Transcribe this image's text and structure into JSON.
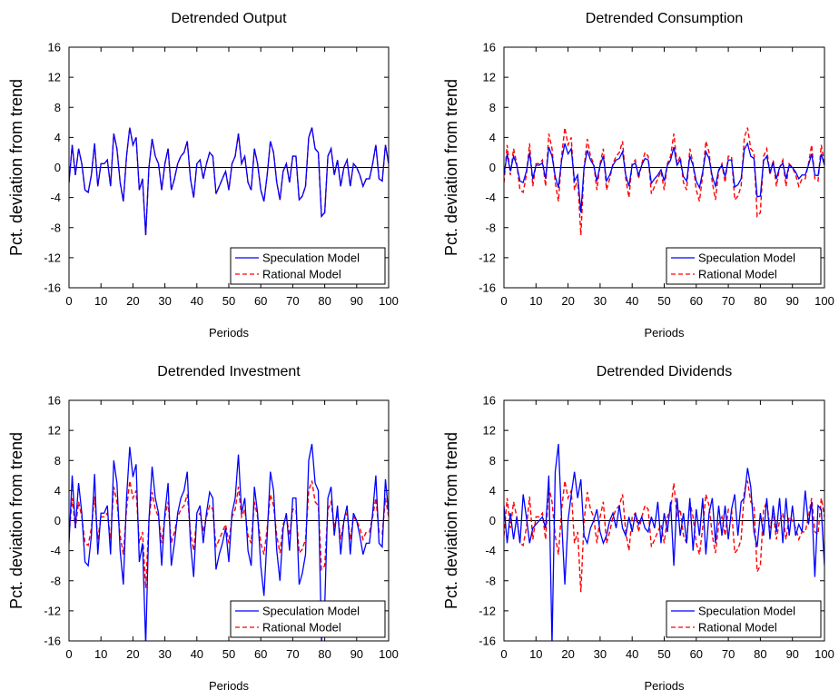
{
  "colors": {
    "speculation": "#0000ff",
    "rational": "#ff0000",
    "axis": "#000000",
    "background": "#ffffff"
  },
  "chart_data": [
    {
      "type": "line",
      "title": "Detrended Output",
      "xlabel": "Periods",
      "ylabel": "Pct. deviation from trend",
      "xlim": [
        0,
        100
      ],
      "ylim": [
        -16,
        16
      ],
      "xticks": [
        0,
        10,
        20,
        30,
        40,
        50,
        60,
        70,
        80,
        90,
        100
      ],
      "yticks": [
        16,
        12,
        8,
        4,
        0,
        -4,
        -8,
        -12,
        -16
      ],
      "grid": false,
      "legend_position": "bottom-right",
      "series": [
        {
          "name": "Speculation Model",
          "style": "solid",
          "values": [
            -2,
            3,
            -1,
            2.5,
            0.5,
            -3,
            -3.3,
            -1,
            3.2,
            -2.5,
            0.5,
            0.5,
            1,
            -2.5,
            4.5,
            2.5,
            -2,
            -4.5,
            1.5,
            5.3,
            3,
            4,
            -3,
            -1.5,
            -9,
            0,
            3.8,
            1.5,
            0.5,
            -3,
            0.5,
            2.5,
            -3,
            -1.5,
            0.5,
            1.5,
            2,
            3.5,
            -1.5,
            -4,
            0.5,
            1,
            -1.5,
            0.5,
            2,
            1.5,
            -3.5,
            -2.5,
            -1.5,
            -0.5,
            -3,
            0.5,
            1.5,
            4.5,
            0.5,
            1.5,
            -2,
            -3,
            2.5,
            0.5,
            -3,
            -4.5,
            -1,
            3.5,
            2,
            -2,
            -4.3,
            -0.5,
            0.5,
            -2,
            1.5,
            1.5,
            -4.3,
            -3.8,
            -2.5,
            4,
            5.3,
            2.5,
            2,
            -6.5,
            -6,
            1.5,
            2.5,
            -1,
            1,
            -2.5,
            0,
            1,
            -2.5,
            0.5,
            0,
            -1,
            -2.5,
            -1.5,
            -1.5,
            0.5,
            3,
            -1.5,
            -1.8,
            3,
            0.5
          ]
        },
        {
          "name": "Rational Model",
          "style": "dashed",
          "values": [
            -2,
            3,
            -1,
            2.5,
            0.5,
            -3,
            -3.3,
            -1,
            3.2,
            -2.5,
            0.5,
            0.5,
            1,
            -2.5,
            4.5,
            2.5,
            -2,
            -4.5,
            1.5,
            5.3,
            3,
            4,
            -3,
            -1.5,
            -9,
            0,
            3.8,
            1.5,
            0.5,
            -3,
            0.5,
            2.5,
            -3,
            -1.5,
            0.5,
            1.5,
            2,
            3.5,
            -1.5,
            -4,
            0.5,
            1,
            -1.5,
            0.5,
            2,
            1.5,
            -3.5,
            -2.5,
            -1.5,
            -0.5,
            -3,
            0.5,
            1.5,
            4.5,
            0.5,
            1.5,
            -2,
            -3,
            2.5,
            0.5,
            -3,
            -4.5,
            -1,
            3.5,
            2,
            -2,
            -4.3,
            -0.5,
            0.5,
            -2,
            1.5,
            1.5,
            -4.3,
            -3.8,
            -2.5,
            4,
            5.3,
            2.5,
            2,
            -6.5,
            -6,
            1.5,
            2.5,
            -1,
            1,
            -2.5,
            0,
            1,
            -2.5,
            0.5,
            0,
            -1,
            -2.5,
            -1.5,
            -1.5,
            0.5,
            3,
            -1.5,
            -1.8,
            3,
            0.5
          ]
        }
      ]
    },
    {
      "type": "line",
      "title": "Detrended Consumption",
      "xlabel": "Periods",
      "ylabel": "Pct. deviation from trend",
      "xlim": [
        0,
        100
      ],
      "ylim": [
        -16,
        16
      ],
      "xticks": [
        0,
        10,
        20,
        30,
        40,
        50,
        60,
        70,
        80,
        90,
        100
      ],
      "yticks": [
        16,
        12,
        8,
        4,
        0,
        -4,
        -8,
        -12,
        -16
      ],
      "grid": false,
      "legend_position": "bottom-right",
      "series": [
        {
          "name": "Speculation Model",
          "style": "solid",
          "values": [
            -1,
            1.8,
            -0.5,
            1.5,
            0.3,
            -1.8,
            -2,
            -0.5,
            2,
            -1.5,
            0.3,
            0.3,
            0.6,
            -1.5,
            2.7,
            1.5,
            -1.2,
            -2.7,
            1,
            3.2,
            1.8,
            2.5,
            -1.8,
            -1,
            -6,
            0,
            2.3,
            1,
            0.3,
            -1.8,
            0.3,
            1.5,
            -1.8,
            -1,
            0.3,
            1,
            1.2,
            2.1,
            -1,
            -2.5,
            0.3,
            0.6,
            -1,
            0.3,
            1.2,
            1,
            -2.1,
            -1.5,
            -1,
            -0.3,
            -1.8,
            0.3,
            1,
            2.7,
            0.3,
            1,
            -1.2,
            -1.8,
            1.5,
            0.3,
            -1.8,
            -2.7,
            -0.6,
            2.1,
            1.2,
            -1.2,
            -2.5,
            -0.3,
            0.3,
            -1.2,
            1,
            1,
            -2.6,
            -2.3,
            -1.5,
            2.4,
            3.2,
            1.5,
            1.2,
            -3.9,
            -3.8,
            0.9,
            1.5,
            -0.6,
            0.6,
            -1.5,
            0,
            0.6,
            -1.5,
            0.3,
            0,
            -0.6,
            -1.5,
            -1,
            -1,
            0.3,
            1.8,
            -1,
            -1.1,
            1.8,
            0.3
          ]
        },
        {
          "name": "Rational Model",
          "style": "dashed",
          "values": [
            -2,
            3,
            -1,
            2.5,
            0.5,
            -3,
            -3.3,
            -1,
            3.2,
            -2.5,
            0.5,
            0.5,
            1,
            -2.5,
            4.5,
            2.5,
            -2,
            -4.5,
            1.5,
            5.3,
            3,
            4,
            -3,
            -1.5,
            -9,
            0,
            3.8,
            1.5,
            0.5,
            -3,
            0.5,
            2.5,
            -3,
            -1.5,
            0.5,
            1.5,
            2,
            3.5,
            -1.5,
            -4,
            0.5,
            1,
            -1.5,
            0.5,
            2,
            1.5,
            -3.5,
            -2.5,
            -1.5,
            -0.5,
            -3,
            0.5,
            1.5,
            4.5,
            0.5,
            1.5,
            -2,
            -3,
            2.5,
            0.5,
            -3,
            -4.5,
            -1,
            3.5,
            2,
            -2,
            -4.3,
            -0.5,
            0.5,
            -2,
            1.5,
            1.5,
            -4.3,
            -3.8,
            -2.5,
            4,
            5.3,
            2.5,
            2,
            -6.5,
            -6,
            1.5,
            2.5,
            -1,
            1,
            -2.5,
            0,
            1,
            -2.5,
            0.5,
            0,
            -1,
            -2.5,
            -1.5,
            -1.5,
            0.5,
            3,
            -1.5,
            -1.8,
            3,
            0.5
          ]
        }
      ]
    },
    {
      "type": "line",
      "title": "Detrended Investment",
      "xlabel": "Periods",
      "ylabel": "Pct. deviation from trend",
      "xlim": [
        0,
        100
      ],
      "ylim": [
        -16,
        16
      ],
      "xticks": [
        0,
        10,
        20,
        30,
        40,
        50,
        60,
        70,
        80,
        90,
        100
      ],
      "yticks": [
        16,
        12,
        8,
        4,
        0,
        -4,
        -8,
        -12,
        -16
      ],
      "grid": false,
      "legend_position": "bottom-right",
      "series": [
        {
          "name": "Speculation Model",
          "style": "solid",
          "values": [
            -3,
            6,
            -1,
            5,
            1,
            -5.5,
            -6,
            -2,
            6.2,
            -4.5,
            1,
            1,
            2,
            -4.5,
            8,
            5,
            -4,
            -8.5,
            3,
            9.8,
            5.8,
            7.5,
            -5.5,
            -3,
            -16.5,
            0,
            7.2,
            3,
            1,
            -6,
            1,
            5,
            -6,
            -3,
            1,
            3,
            4,
            6.5,
            -3,
            -7.5,
            1,
            2,
            -3,
            1,
            3.8,
            3,
            -6.5,
            -4.5,
            -3,
            -1,
            -5.5,
            1,
            3,
            8.8,
            1,
            3,
            -4,
            -6,
            4.5,
            1,
            -6,
            -10,
            -2,
            6.5,
            4,
            -4,
            -8,
            -1,
            1,
            -4,
            3,
            3,
            -8.5,
            -7,
            -4.5,
            8,
            10.2,
            5,
            4,
            -16,
            -11.5,
            3,
            4.5,
            -2,
            2,
            -4.5,
            0,
            2,
            -4.5,
            1,
            0,
            -2,
            -4.5,
            -3,
            -3,
            1,
            6,
            -3,
            -3.5,
            5.5,
            1
          ]
        },
        {
          "name": "Rational Model",
          "style": "dashed",
          "values": [
            -2,
            3,
            -1,
            2.5,
            0.5,
            -3,
            -3.3,
            -1,
            3.2,
            -2.5,
            0.5,
            0.5,
            1,
            -2.5,
            4.5,
            2.5,
            -2,
            -4.5,
            1.5,
            5.3,
            3,
            4,
            -3,
            -1.5,
            -9,
            0,
            3.8,
            1.5,
            0.5,
            -3,
            0.5,
            2.5,
            -3,
            -1.5,
            0.5,
            1.5,
            2,
            3.5,
            -1.5,
            -4,
            0.5,
            1,
            -1.5,
            0.5,
            2,
            1.5,
            -3.5,
            -2.5,
            -1.5,
            -0.5,
            -3,
            0.5,
            1.5,
            4.5,
            0.5,
            1.5,
            -2,
            -3,
            2.5,
            0.5,
            -3,
            -4.5,
            -1,
            3.5,
            2,
            -2,
            -4.3,
            -0.5,
            0.5,
            -2,
            1.5,
            1.5,
            -4.3,
            -3.8,
            -2.5,
            4,
            5.3,
            2.5,
            2,
            -6.5,
            -6,
            1.5,
            2.5,
            -1,
            1,
            -2.5,
            0,
            1,
            -2.5,
            0.5,
            0,
            -1,
            -2.5,
            -1.5,
            -1.5,
            0.5,
            3,
            -1.5,
            -1.8,
            3,
            0.5
          ]
        }
      ]
    },
    {
      "type": "line",
      "title": "Detrended Dividends",
      "xlabel": "Periods",
      "ylabel": "Pct. deviation from trend",
      "xlim": [
        0,
        100
      ],
      "ylim": [
        -16,
        16
      ],
      "xticks": [
        0,
        10,
        20,
        30,
        40,
        50,
        60,
        70,
        80,
        90,
        100
      ],
      "yticks": [
        16,
        12,
        8,
        4,
        0,
        -4,
        -8,
        -12,
        -16
      ],
      "grid": false,
      "legend_position": "bottom-right",
      "series": [
        {
          "name": "Speculation Model",
          "style": "solid",
          "values": [
            2,
            -3,
            1,
            -2.5,
            0.5,
            -3,
            3.5,
            0.5,
            -3,
            -1,
            -0.5,
            0,
            0.5,
            -1,
            6,
            -16.5,
            6.5,
            10.2,
            0,
            -8.5,
            0,
            3.5,
            6.5,
            3,
            5.5,
            -2,
            -3,
            -1,
            0,
            1.5,
            -1.5,
            -3,
            -2,
            0,
            1,
            -1,
            2,
            -1,
            -2,
            0.5,
            -1.5,
            1,
            -0.5,
            0.5,
            -1,
            -1.5,
            0.5,
            -1,
            2.5,
            -3,
            1,
            -1.5,
            2.5,
            -6,
            3,
            -2,
            1,
            -3,
            3,
            -4,
            1.5,
            -2,
            3,
            -4.5,
            1,
            3,
            -3,
            2,
            -2,
            2,
            -2.5,
            1.5,
            3.5,
            -2,
            2.5,
            3,
            7,
            4.5,
            -1.5,
            -3.5,
            1,
            -2,
            3,
            -2.5,
            2,
            -1.5,
            3,
            -3,
            3,
            -2,
            2,
            -2,
            -0.5,
            -1.5,
            4,
            -0.5,
            2.5,
            -7.5,
            2,
            1.5,
            -6
          ]
        },
        {
          "name": "Rational Model",
          "style": "dashed",
          "values": [
            -2,
            3,
            -1,
            2.5,
            0.5,
            -3,
            -3.3,
            -1,
            3.2,
            -2.5,
            0.5,
            0.5,
            1,
            -2.5,
            4.5,
            2.5,
            -2,
            -4.5,
            1.5,
            5.3,
            3,
            4,
            -3,
            -1.5,
            -9.5,
            0,
            3.8,
            1.5,
            0.5,
            -3,
            0.5,
            2.5,
            -3,
            -1.5,
            0.5,
            1.5,
            2,
            3.5,
            -1.5,
            -4,
            0.5,
            1,
            -1.5,
            0.5,
            2,
            1.5,
            -3.5,
            -2.5,
            -1.5,
            -0.5,
            -3,
            0.5,
            1.5,
            5,
            0.5,
            1.5,
            -2,
            -3,
            2.5,
            0.5,
            -3,
            -4.5,
            -1,
            3.5,
            2,
            -2,
            -4.3,
            -0.5,
            0.5,
            -2,
            1.5,
            1.5,
            -4.3,
            -3.8,
            -2.5,
            4,
            5.3,
            2.5,
            2,
            -6.8,
            -6,
            1.5,
            2.5,
            -1,
            1,
            -2.5,
            0,
            1,
            -2.5,
            0.5,
            0,
            -1,
            -2.5,
            -1.5,
            -1.5,
            0.5,
            3,
            -1.5,
            -1.8,
            3,
            0.5
          ]
        }
      ]
    }
  ]
}
